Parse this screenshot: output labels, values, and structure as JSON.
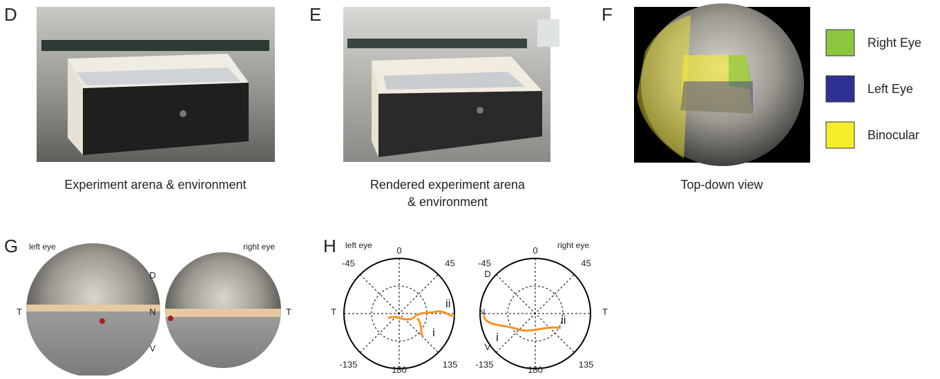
{
  "panels": {
    "D": {
      "letter": "D",
      "caption": "Experiment arena & environment"
    },
    "E": {
      "letter": "E",
      "caption_lines": [
        "Rendered experiment arena",
        "& environment"
      ]
    },
    "F": {
      "letter": "F",
      "caption": "Top-down view"
    },
    "legend": [
      {
        "label": "Right Eye",
        "color": "#8cc63f"
      },
      {
        "label": "Left Eye",
        "color": "#2e3192"
      },
      {
        "label": "Binocular",
        "color": "#f7ec2a"
      }
    ],
    "G": {
      "letter": "G",
      "left_title": "left eye",
      "right_title": "right eye",
      "left_temporal": "T",
      "nasal": "N",
      "dorsal": "D",
      "ventral": "V",
      "right_temporal": "T"
    },
    "H": {
      "letter": "H",
      "left": {
        "title": "left eye",
        "angles": [
          0,
          -45,
          45,
          -135,
          135,
          180
        ],
        "side": "T",
        "marks": [
          "i",
          "ii"
        ]
      },
      "right": {
        "title": "right eye",
        "angles": [
          0,
          -45,
          45,
          -135,
          135,
          180
        ],
        "side_nasal": "N",
        "dorsal": "D",
        "ventral": "V",
        "side_temporal": "T",
        "marks": [
          "i",
          "ii"
        ]
      }
    }
  }
}
